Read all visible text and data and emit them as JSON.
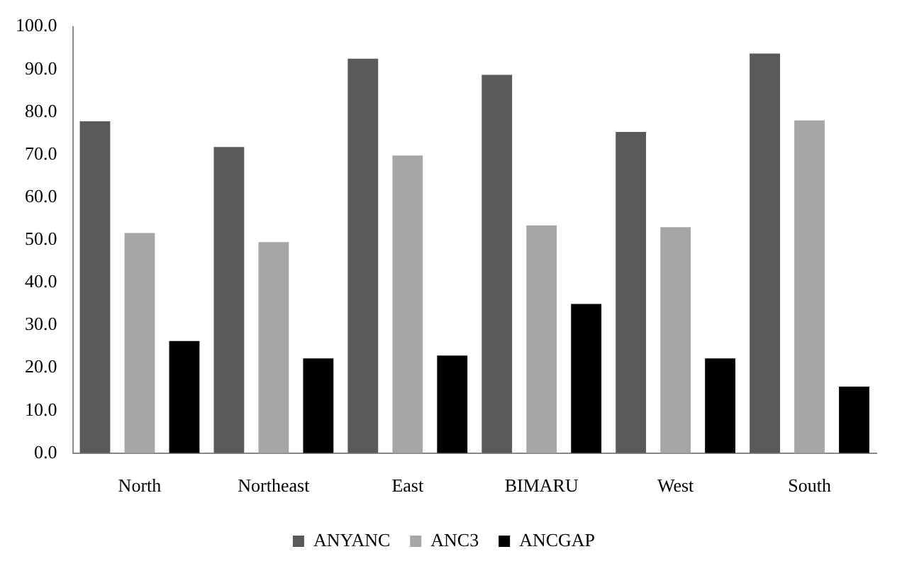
{
  "chart_data": {
    "type": "bar",
    "categories": [
      "North",
      "Northeast",
      "East",
      "BIMARU",
      "West",
      "South"
    ],
    "series": [
      {
        "name": "ANYANC",
        "color": "#595959",
        "values": [
          77.8,
          71.8,
          92.5,
          88.7,
          75.3,
          93.7
        ]
      },
      {
        "name": "ANC3",
        "color": "#a6a6a6",
        "values": [
          51.6,
          49.5,
          69.8,
          53.4,
          53.0,
          78.0
        ]
      },
      {
        "name": "ANCGAP",
        "color": "#000000",
        "values": [
          26.3,
          22.2,
          22.9,
          35.0,
          22.2,
          15.6
        ]
      }
    ],
    "ylim": [
      0,
      100
    ],
    "yticks": [
      {
        "value": 0,
        "label": "0.0"
      },
      {
        "value": 10,
        "label": "10.0"
      },
      {
        "value": 20,
        "label": "20.0"
      },
      {
        "value": 30,
        "label": "30.0"
      },
      {
        "value": 40,
        "label": "40.0"
      },
      {
        "value": 50,
        "label": "50.0"
      },
      {
        "value": 60,
        "label": "60.0"
      },
      {
        "value": 70,
        "label": "70.0"
      },
      {
        "value": 80,
        "label": "80.0"
      },
      {
        "value": 90,
        "label": "90.0"
      },
      {
        "value": 100,
        "label": "100.0"
      }
    ],
    "grid": false,
    "legend": "bottom"
  }
}
